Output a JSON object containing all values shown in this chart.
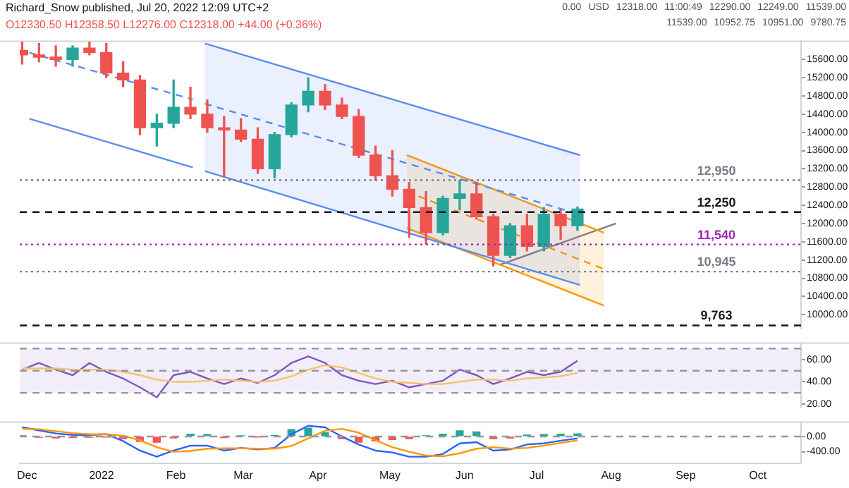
{
  "chart_data": [
    {
      "type": "candlestick",
      "title": "Richard_Snow published, Jul 20, 2022 12:09 UTC+2",
      "subtitle": "O12330.50 H12358.50 L12276.00 C12318.00 +44.00 (+0.36%)",
      "x": [
        "2021-11-29",
        "2021-12-06",
        "2021-12-13",
        "2021-12-20",
        "2021-12-27",
        "2022-01-03",
        "2022-01-10",
        "2022-01-17",
        "2022-01-24",
        "2022-01-31",
        "2022-02-07",
        "2022-02-14",
        "2022-02-21",
        "2022-02-28",
        "2022-03-07",
        "2022-03-14",
        "2022-03-21",
        "2022-03-28",
        "2022-04-04",
        "2022-04-11",
        "2022-04-18",
        "2022-04-25",
        "2022-05-02",
        "2022-05-09",
        "2022-05-16",
        "2022-05-23",
        "2022-05-30",
        "2022-06-06",
        "2022-06-13",
        "2022-06-20",
        "2022-06-27",
        "2022-07-04",
        "2022-07-11",
        "2022-07-18"
      ],
      "ohlc": [
        [
          15800,
          15980,
          15500,
          15700
        ],
        [
          15700,
          15950,
          15550,
          15650
        ],
        [
          15650,
          15900,
          15450,
          15600
        ],
        [
          15600,
          15900,
          15450,
          15850
        ],
        [
          15850,
          15980,
          15700,
          15750
        ],
        [
          15750,
          15950,
          15200,
          15300
        ],
        [
          15300,
          15550,
          15000,
          15150
        ],
        [
          15150,
          15250,
          13950,
          14100
        ],
        [
          14100,
          14400,
          13700,
          14200
        ],
        [
          14200,
          15150,
          14100,
          14550
        ],
        [
          14550,
          14990,
          14300,
          14400
        ],
        [
          14400,
          14710,
          14000,
          14100
        ],
        [
          14100,
          14350,
          13020,
          14050
        ],
        [
          14050,
          14300,
          13800,
          13850
        ],
        [
          13850,
          14100,
          13100,
          13200
        ],
        [
          13200,
          14000,
          13000,
          13950
        ],
        [
          13950,
          14650,
          13900,
          14600
        ],
        [
          14600,
          15200,
          14450,
          14900
        ],
        [
          14900,
          15050,
          14500,
          14600
        ],
        [
          14600,
          14750,
          14300,
          14350
        ],
        [
          14350,
          14500,
          13450,
          13500
        ],
        [
          13500,
          13700,
          12950,
          13050
        ],
        [
          13050,
          13600,
          12600,
          12750
        ],
        [
          12750,
          12900,
          11700,
          12350
        ],
        [
          12350,
          12700,
          11550,
          11800
        ],
        [
          11800,
          12600,
          11750,
          12550
        ],
        [
          12550,
          12950,
          12300,
          12650
        ],
        [
          12650,
          12900,
          12100,
          12150
        ],
        [
          12150,
          12200,
          11070,
          11300
        ],
        [
          11300,
          12000,
          11250,
          11950
        ],
        [
          11950,
          12200,
          11400,
          11500
        ],
        [
          11500,
          12350,
          11400,
          12200
        ],
        [
          12200,
          12300,
          11650,
          11950
        ],
        [
          11950,
          12358.5,
          11850,
          12318
        ]
      ],
      "colors": [
        "#ef5350",
        "#ef5350",
        "#ef5350",
        "#26a69a",
        "#ef5350",
        "#ef5350",
        "#ef5350",
        "#ef5350",
        "#26a69a",
        "#26a69a",
        "#ef5350",
        "#ef5350",
        "#ef5350",
        "#ef5350",
        "#ef5350",
        "#26a69a",
        "#26a69a",
        "#26a69a",
        "#ef5350",
        "#ef5350",
        "#ef5350",
        "#ef5350",
        "#ef5350",
        "#ef5350",
        "#ef5350",
        "#26a69a",
        "#26a69a",
        "#ef5350",
        "#ef5350",
        "#26a69a",
        "#ef5350",
        "#26a69a",
        "#ef5350",
        "#26a69a"
      ],
      "series": [
        {
          "type": "line",
          "color": "#5b8def",
          "line_style": "dashed",
          "x": [
            "2022-02-13",
            "2022-07-19"
          ],
          "values": [
            14630,
            12200
          ],
          "upper": [
            15950,
            13500
          ],
          "lower": [
            13150,
            10650
          ]
        },
        {
          "type": "line",
          "color": "#5b8def",
          "line_style": "solid",
          "x": [
            "2022-02-13",
            "2022-07-19"
          ],
          "values": [
            15950,
            13500
          ]
        },
        {
          "type": "line",
          "color": "#5b8def",
          "line_style": "solid",
          "x": [
            "2022-02-13",
            "2022-07-19"
          ],
          "values": [
            13150,
            10650
          ]
        },
        {
          "type": "line",
          "color": "#5b8def",
          "line_style": "dashed",
          "x": [
            "2021-12-02",
            "2022-02-08"
          ],
          "values": [
            15750,
            14720
          ]
        },
        {
          "type": "line",
          "color": "#5b8def",
          "line_style": "solid",
          "x": [
            "2021-12-02",
            "2022-02-08"
          ],
          "values": [
            14300,
            13230
          ]
        },
        {
          "type": "line",
          "color": "#ff9800",
          "line_style": "dashed",
          "x": [
            "2022-05-08",
            "2022-07-29"
          ],
          "values": [
            12700,
            11000
          ],
          "upper": [
            13500,
            11800
          ],
          "lower": [
            11900,
            10200
          ]
        },
        {
          "type": "line",
          "color": "#ff9800",
          "line_style": "solid",
          "x": [
            "2022-05-08",
            "2022-07-29"
          ],
          "values": [
            13500,
            11800
          ]
        },
        {
          "type": "line",
          "color": "#ff9800",
          "line_style": "solid",
          "x": [
            "2022-05-08",
            "2022-07-29"
          ],
          "values": [
            11900,
            10200
          ]
        },
        {
          "type": "line",
          "color": "#787b86",
          "line_style": "solid",
          "x": [
            "2022-06-16",
            "2022-08-03"
          ],
          "values": [
            11100,
            12000
          ]
        }
      ],
      "ref_lines": [
        {
          "axis": "y",
          "value": 12950,
          "label": "12,950",
          "color": "#787b86",
          "line_style": "dotted"
        },
        {
          "axis": "y",
          "value": 12250,
          "label": "12,250",
          "color": "#131722",
          "line_style": "dashed"
        },
        {
          "axis": "y",
          "value": 11540,
          "label": "11,540",
          "color": "#9c27b0",
          "line_style": "dotted"
        },
        {
          "axis": "y",
          "value": 10945,
          "label": "10,945",
          "color": "#787b86",
          "line_style": "dotted"
        },
        {
          "axis": "y",
          "value": 9763,
          "label": "9,763",
          "color": "#131722",
          "line_style": "dashed"
        }
      ],
      "annotations": [
        "0.00",
        "USD",
        "12318.00",
        "11:00:49",
        "12290.00",
        "12249.00",
        "11539.00",
        "11539.00",
        "10952.75",
        "10951.00",
        "9780.75"
      ],
      "xlim": [
        "2021-11-28",
        "2022-10-19"
      ],
      "ylim": [
        9700,
        16000
      ],
      "yticks": [
        {
          "value": 10000,
          "label": "10000.00"
        },
        {
          "value": 10400,
          "label": "10400.00"
        },
        {
          "value": 10800,
          "label": "10800.00"
        },
        {
          "value": 11200,
          "label": "11200.00"
        },
        {
          "value": 11600,
          "label": "11600.00"
        },
        {
          "value": 12000,
          "label": "12000.00"
        },
        {
          "value": 12400,
          "label": "12400.00"
        },
        {
          "value": 12800,
          "label": "12800.00"
        },
        {
          "value": 13200,
          "label": "13200.00"
        },
        {
          "value": 13600,
          "label": "13600.00"
        },
        {
          "value": 14000,
          "label": "14000.00"
        },
        {
          "value": 14400,
          "label": "14400.00"
        },
        {
          "value": 14800,
          "label": "14800.00"
        },
        {
          "value": 15200,
          "label": "15200.00"
        },
        {
          "value": 15600,
          "label": "15600.00"
        }
      ],
      "tick_labels": "y"
    },
    {
      "type": "line",
      "x": [
        "2021-11-29",
        "2021-12-06",
        "2021-12-13",
        "2021-12-20",
        "2021-12-27",
        "2022-01-03",
        "2022-01-10",
        "2022-01-17",
        "2022-01-24",
        "2022-01-31",
        "2022-02-07",
        "2022-02-14",
        "2022-02-21",
        "2022-02-28",
        "2022-03-07",
        "2022-03-14",
        "2022-03-21",
        "2022-03-28",
        "2022-04-04",
        "2022-04-11",
        "2022-04-18",
        "2022-04-25",
        "2022-05-02",
        "2022-05-09",
        "2022-05-16",
        "2022-05-23",
        "2022-05-30",
        "2022-06-06",
        "2022-06-13",
        "2022-06-20",
        "2022-06-27",
        "2022-07-04",
        "2022-07-11",
        "2022-07-18"
      ],
      "series": [
        {
          "color": "#f5c26b",
          "values": [
            52,
            52,
            52,
            51,
            51,
            51,
            49,
            46,
            42,
            40,
            40,
            41,
            42,
            41,
            40,
            41,
            45,
            51,
            55,
            53,
            48,
            43,
            40,
            39,
            38,
            38,
            40,
            42,
            42,
            41,
            43,
            44,
            45,
            48
          ]
        },
        {
          "color": "#7e57c2",
          "values": [
            51,
            57,
            51,
            46,
            57,
            49,
            43,
            35,
            26,
            46,
            49,
            43,
            38,
            43,
            39,
            46,
            57,
            63,
            57,
            46,
            41,
            38,
            41,
            35,
            38,
            41,
            51,
            46,
            38,
            43,
            49,
            46,
            49,
            59
          ]
        }
      ],
      "bands": [
        {
          "axis": "y",
          "from": 30,
          "to": 70,
          "color": "#7e57c2"
        }
      ],
      "ref_lines": [
        {
          "axis": "y",
          "value": 70,
          "color": "#9598a1",
          "line_style": "dashed"
        },
        {
          "axis": "y",
          "value": 50,
          "color": "#9598a1",
          "line_style": "dashed"
        },
        {
          "axis": "y",
          "value": 30,
          "color": "#9598a1",
          "line_style": "dashed"
        }
      ],
      "xlim": [
        "2021-11-28",
        "2022-10-19"
      ],
      "ylim": [
        17,
        75
      ],
      "yticks": [
        {
          "value": 20,
          "label": "20.00"
        },
        {
          "value": 40,
          "label": "40.00"
        },
        {
          "value": 60,
          "label": "60.00"
        }
      ],
      "tick_labels": "y"
    },
    {
      "type": "line",
      "x": [
        "2021-11-29",
        "2021-12-06",
        "2021-12-13",
        "2021-12-20",
        "2021-12-27",
        "2022-01-03",
        "2022-01-10",
        "2022-01-17",
        "2022-01-24",
        "2022-01-31",
        "2022-02-07",
        "2022-02-14",
        "2022-02-21",
        "2022-02-28",
        "2022-03-07",
        "2022-03-14",
        "2022-03-21",
        "2022-03-28",
        "2022-04-04",
        "2022-04-11",
        "2022-04-18",
        "2022-04-25",
        "2022-05-02",
        "2022-05-09",
        "2022-05-16",
        "2022-05-23",
        "2022-05-30",
        "2022-06-06",
        "2022-06-13",
        "2022-06-20",
        "2022-06-27",
        "2022-07-04",
        "2022-07-11",
        "2022-07-18"
      ],
      "series": [
        {
          "type": "bar",
          "colors": [
            "#26a69a",
            "#ff5252",
            "#ff5252",
            "#ff5252",
            "#ff5252",
            "#ff5252",
            "#ff5252",
            "#ff5252",
            "#ff5252",
            "#ff5252",
            "#26a69a",
            "#26a69a",
            "#ff5252",
            "#26a69a",
            "#ff5252",
            "#26a69a",
            "#26a69a",
            "#26a69a",
            "#26a69a",
            "#ff5252",
            "#ff5252",
            "#ff5252",
            "#ff5252",
            "#ff5252",
            "#26a69a",
            "#26a69a",
            "#26a69a",
            "#26a69a",
            "#ff5252",
            "#ff5252",
            "#26a69a",
            "#26a69a",
            "#26a69a",
            "#26a69a"
          ],
          "values": [
            20,
            -20,
            -40,
            -30,
            -20,
            -10,
            -60,
            -130,
            -150,
            -40,
            60,
            50,
            -30,
            20,
            -10,
            30,
            180,
            220,
            100,
            -60,
            -150,
            -120,
            -80,
            -60,
            20,
            60,
            150,
            120,
            -60,
            -40,
            40,
            50,
            60,
            70
          ]
        },
        {
          "type": "line",
          "color": "#ff9800",
          "values": [
            200,
            190,
            140,
            90,
            60,
            60,
            20,
            -100,
            -280,
            -400,
            -380,
            -320,
            -310,
            -310,
            -320,
            -320,
            -250,
            -50,
            150,
            200,
            100,
            -100,
            -280,
            -400,
            -500,
            -520,
            -440,
            -320,
            -280,
            -320,
            -300,
            -240,
            -170,
            -100
          ]
        },
        {
          "type": "line",
          "color": "#2962ff",
          "values": [
            240,
            160,
            80,
            40,
            40,
            60,
            -120,
            -370,
            -530,
            -370,
            -240,
            -240,
            -370,
            -300,
            -340,
            -300,
            60,
            280,
            240,
            0,
            -210,
            -370,
            -420,
            -530,
            -530,
            -460,
            -180,
            -150,
            -370,
            -340,
            -210,
            -180,
            -110,
            -50
          ]
        }
      ],
      "ref_lines": [
        {
          "axis": "y",
          "value": 0,
          "color": "#9598a1",
          "line_style": "dashed"
        }
      ],
      "xlim": [
        "2021-11-28",
        "2022-10-19"
      ],
      "ylim": [
        -700,
        380
      ],
      "xticks": [
        {
          "value": "2021-12-01",
          "label": "Dec"
        },
        {
          "value": "2022-01-01",
          "label": "2022"
        },
        {
          "value": "2022-02-01",
          "label": "Feb"
        },
        {
          "value": "2022-03-01",
          "label": "Mar"
        },
        {
          "value": "2022-04-01",
          "label": "Apr"
        },
        {
          "value": "2022-05-01",
          "label": "May"
        },
        {
          "value": "2022-06-01",
          "label": "Jun"
        },
        {
          "value": "2022-07-01",
          "label": "Jul"
        },
        {
          "value": "2022-08-01",
          "label": "Aug"
        },
        {
          "value": "2022-09-01",
          "label": "Sep"
        },
        {
          "value": "2022-10-01",
          "label": "Oct"
        }
      ],
      "yticks": [
        {
          "value": -400,
          "label": "-400.00"
        },
        {
          "value": 0,
          "label": "0.00"
        }
      ]
    }
  ]
}
